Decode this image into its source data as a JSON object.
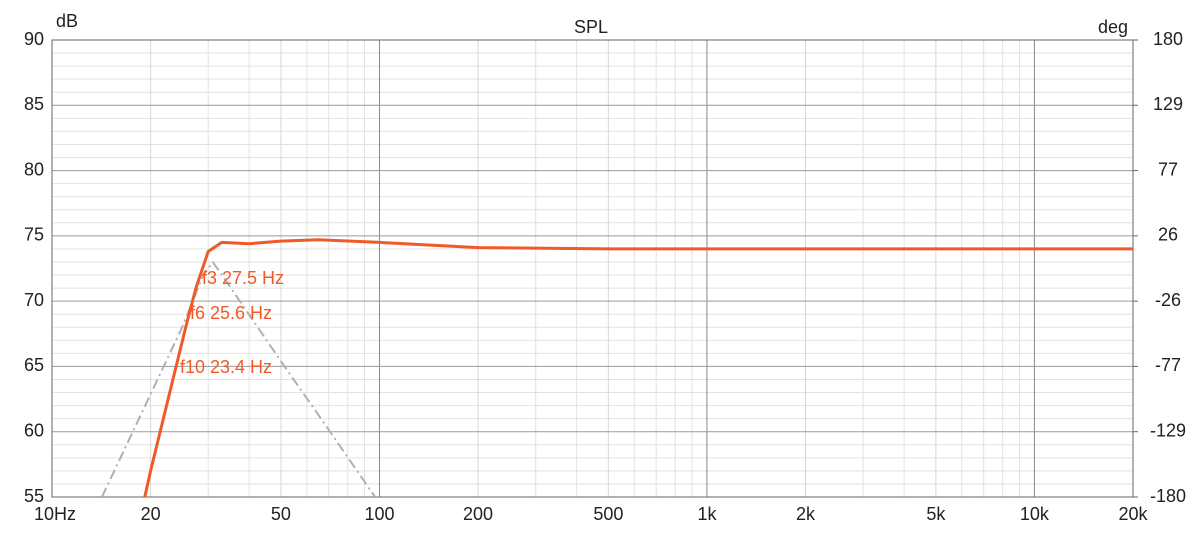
{
  "chart_data": {
    "type": "line",
    "title": "SPL",
    "y_label": "dB",
    "y2_label": "deg",
    "log_x": true,
    "grid": true,
    "xlim": [
      10,
      20000
    ],
    "ylim": [
      55,
      90
    ],
    "y2lim": [
      -180,
      180
    ],
    "xticks": [
      {
        "value": 10,
        "label": "10Hz"
      },
      20,
      50,
      100,
      200,
      500,
      {
        "value": 1000,
        "label": "1k"
      },
      {
        "value": 2000,
        "label": "2k"
      },
      {
        "value": 5000,
        "label": "5k"
      },
      {
        "value": 10000,
        "label": "10k"
      },
      {
        "value": 20000,
        "label": "20k"
      }
    ],
    "x_minor_ticks": [
      30,
      40,
      60,
      70,
      80,
      90,
      300,
      400,
      600,
      700,
      800,
      900,
      3000,
      4000,
      6000,
      7000,
      8000,
      9000
    ],
    "yticks": [
      55,
      60,
      65,
      70,
      75,
      80,
      85,
      90
    ],
    "y_minor_ticks": [
      56,
      57,
      58,
      59,
      61,
      62,
      63,
      64,
      66,
      67,
      68,
      69,
      71,
      72,
      73,
      74,
      76,
      77,
      78,
      79,
      81,
      82,
      83,
      84,
      86,
      87,
      88,
      89
    ],
    "y2ticks": [
      -180,
      {
        "value": -128.57,
        "label": "-129"
      },
      {
        "value": -77.14,
        "label": "-77"
      },
      {
        "value": -25.71,
        "label": "-26"
      },
      {
        "value": 25.71,
        "label": "26"
      },
      {
        "value": 77.14,
        "label": "77"
      },
      {
        "value": 128.57,
        "label": "129"
      },
      180
    ],
    "series": [
      {
        "color": "#f05a28",
        "x": [
          19.2,
          20,
          23.4,
          25.6,
          27.5,
          30,
          33,
          40,
          50,
          65,
          100,
          200,
          500,
          1000,
          20000
        ],
        "values": [
          55,
          57,
          64,
          68,
          71,
          73.8,
          74.5,
          74.4,
          74.6,
          74.7,
          74.5,
          74.1,
          74.0,
          74.0,
          74.0
        ]
      },
      {
        "color": "#b0b0b0",
        "axis": "y2",
        "dashed": true,
        "x": [
          14.2,
          20,
          25,
          29,
          31,
          33,
          50,
          70,
          97
        ],
        "values": [
          -180,
          -99,
          -46,
          -5,
          5,
          -5,
          -73,
          -127,
          -180
        ]
      }
    ],
    "annotations": [
      "f3 27.5 Hz",
      "f6 25.6 Hz",
      "f10 23.4 Hz"
    ]
  }
}
